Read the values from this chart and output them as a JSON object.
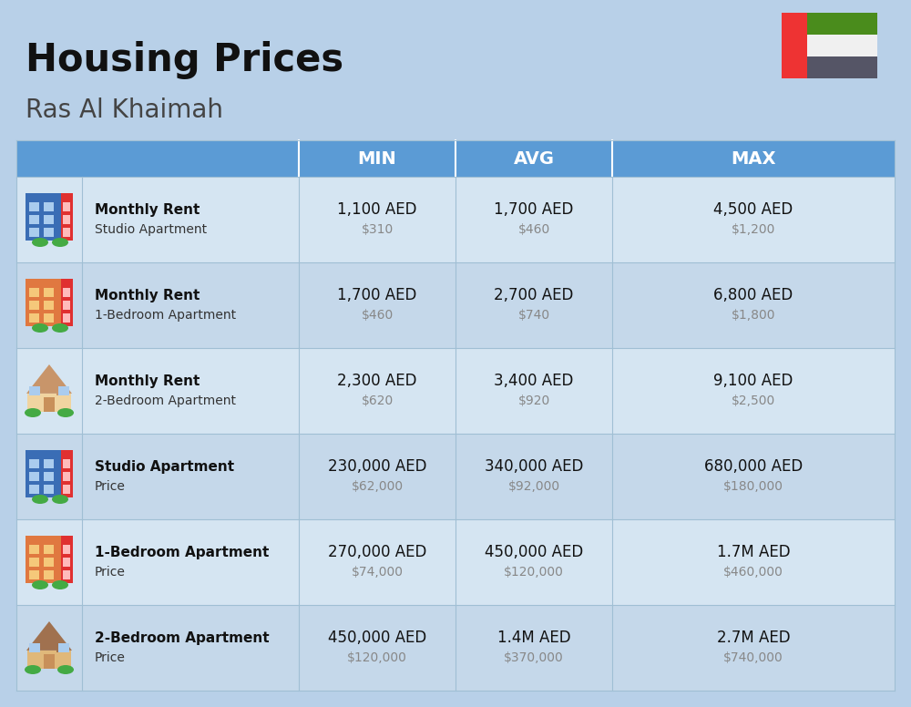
{
  "title": "Housing Prices",
  "subtitle": "Ras Al Khaimah",
  "bg_color": "#b8d0e8",
  "header_bg": "#5b9bd5",
  "header_text_color": "#ffffff",
  "row_bg_light": "#d5e5f2",
  "row_bg_dark": "#c5d8ea",
  "separator_color": "#a0bfd4",
  "col_headers": [
    "MIN",
    "AVG",
    "MAX"
  ],
  "rows": [
    {
      "bold_label": "Monthly Rent",
      "label": "Studio Apartment",
      "min_aed": "1,100 AED",
      "min_usd": "$310",
      "avg_aed": "1,700 AED",
      "avg_usd": "$460",
      "max_aed": "4,500 AED",
      "max_usd": "$1,200",
      "icon_type": "studio_blue"
    },
    {
      "bold_label": "Monthly Rent",
      "label": "1-Bedroom Apartment",
      "min_aed": "1,700 AED",
      "min_usd": "$460",
      "avg_aed": "2,700 AED",
      "avg_usd": "$740",
      "max_aed": "6,800 AED",
      "max_usd": "$1,800",
      "icon_type": "apt_orange"
    },
    {
      "bold_label": "Monthly Rent",
      "label": "2-Bedroom Apartment",
      "min_aed": "2,300 AED",
      "min_usd": "$620",
      "avg_aed": "3,400 AED",
      "avg_usd": "$920",
      "max_aed": "9,100 AED",
      "max_usd": "$2,500",
      "icon_type": "house_tan"
    },
    {
      "bold_label": "Studio Apartment",
      "label": "Price",
      "min_aed": "230,000 AED",
      "min_usd": "$62,000",
      "avg_aed": "340,000 AED",
      "avg_usd": "$92,000",
      "max_aed": "680,000 AED",
      "max_usd": "$180,000",
      "icon_type": "studio_blue"
    },
    {
      "bold_label": "1-Bedroom Apartment",
      "label": "Price",
      "min_aed": "270,000 AED",
      "min_usd": "$74,000",
      "avg_aed": "450,000 AED",
      "avg_usd": "$120,000",
      "max_aed": "1.7M AED",
      "max_usd": "$460,000",
      "icon_type": "apt_orange"
    },
    {
      "bold_label": "2-Bedroom Apartment",
      "label": "Price",
      "min_aed": "450,000 AED",
      "min_usd": "$120,000",
      "avg_aed": "1.4M AED",
      "avg_usd": "$370,000",
      "max_aed": "2.7M AED",
      "max_usd": "$740,000",
      "icon_type": "house_brown"
    }
  ],
  "flag_colors": {
    "red": "#ee3333",
    "green": "#4a8c1c",
    "white": "#f0f0f0",
    "black": "#555566"
  }
}
